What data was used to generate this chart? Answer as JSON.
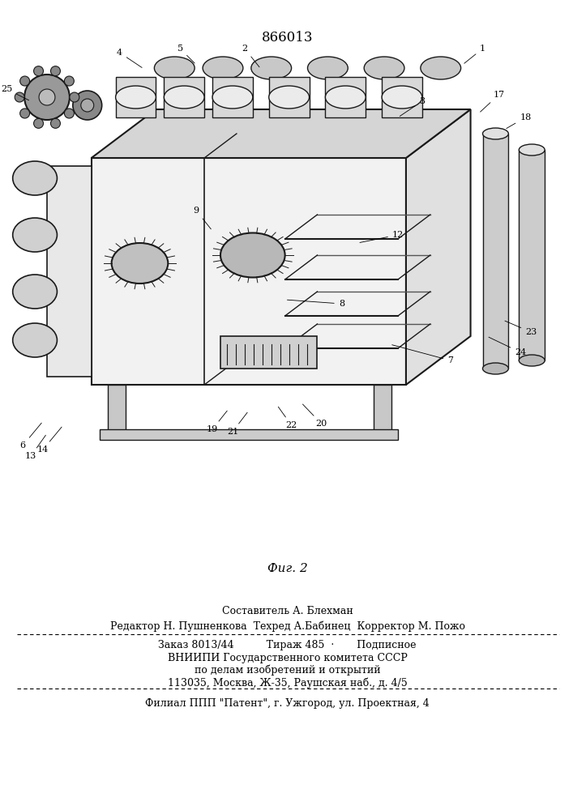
{
  "patent_number": "866013",
  "figure_label": "Фиг. 2",
  "composer": "Составитель А. Блехман",
  "editor_line": "Редактор Н. Пушненкова  Техред А.Бабинец  Корректор М. Пожо",
  "order_line": "Заказ 8013/44          Тираж 485  ·       Подписное",
  "vniigi_line1": "ВНИИПИ Государственного комитета СССР",
  "vniigi_line2": "по делам изобретений и открытий",
  "vniigi_line3": "113035, Москва, Ж-35, Раушская наб., д. 4/5",
  "filial_line": "Филиал ППП \"Патент\", г. Ужгород, ул. Проектная, 4",
  "bg_color": "#ffffff",
  "text_color": "#000000"
}
